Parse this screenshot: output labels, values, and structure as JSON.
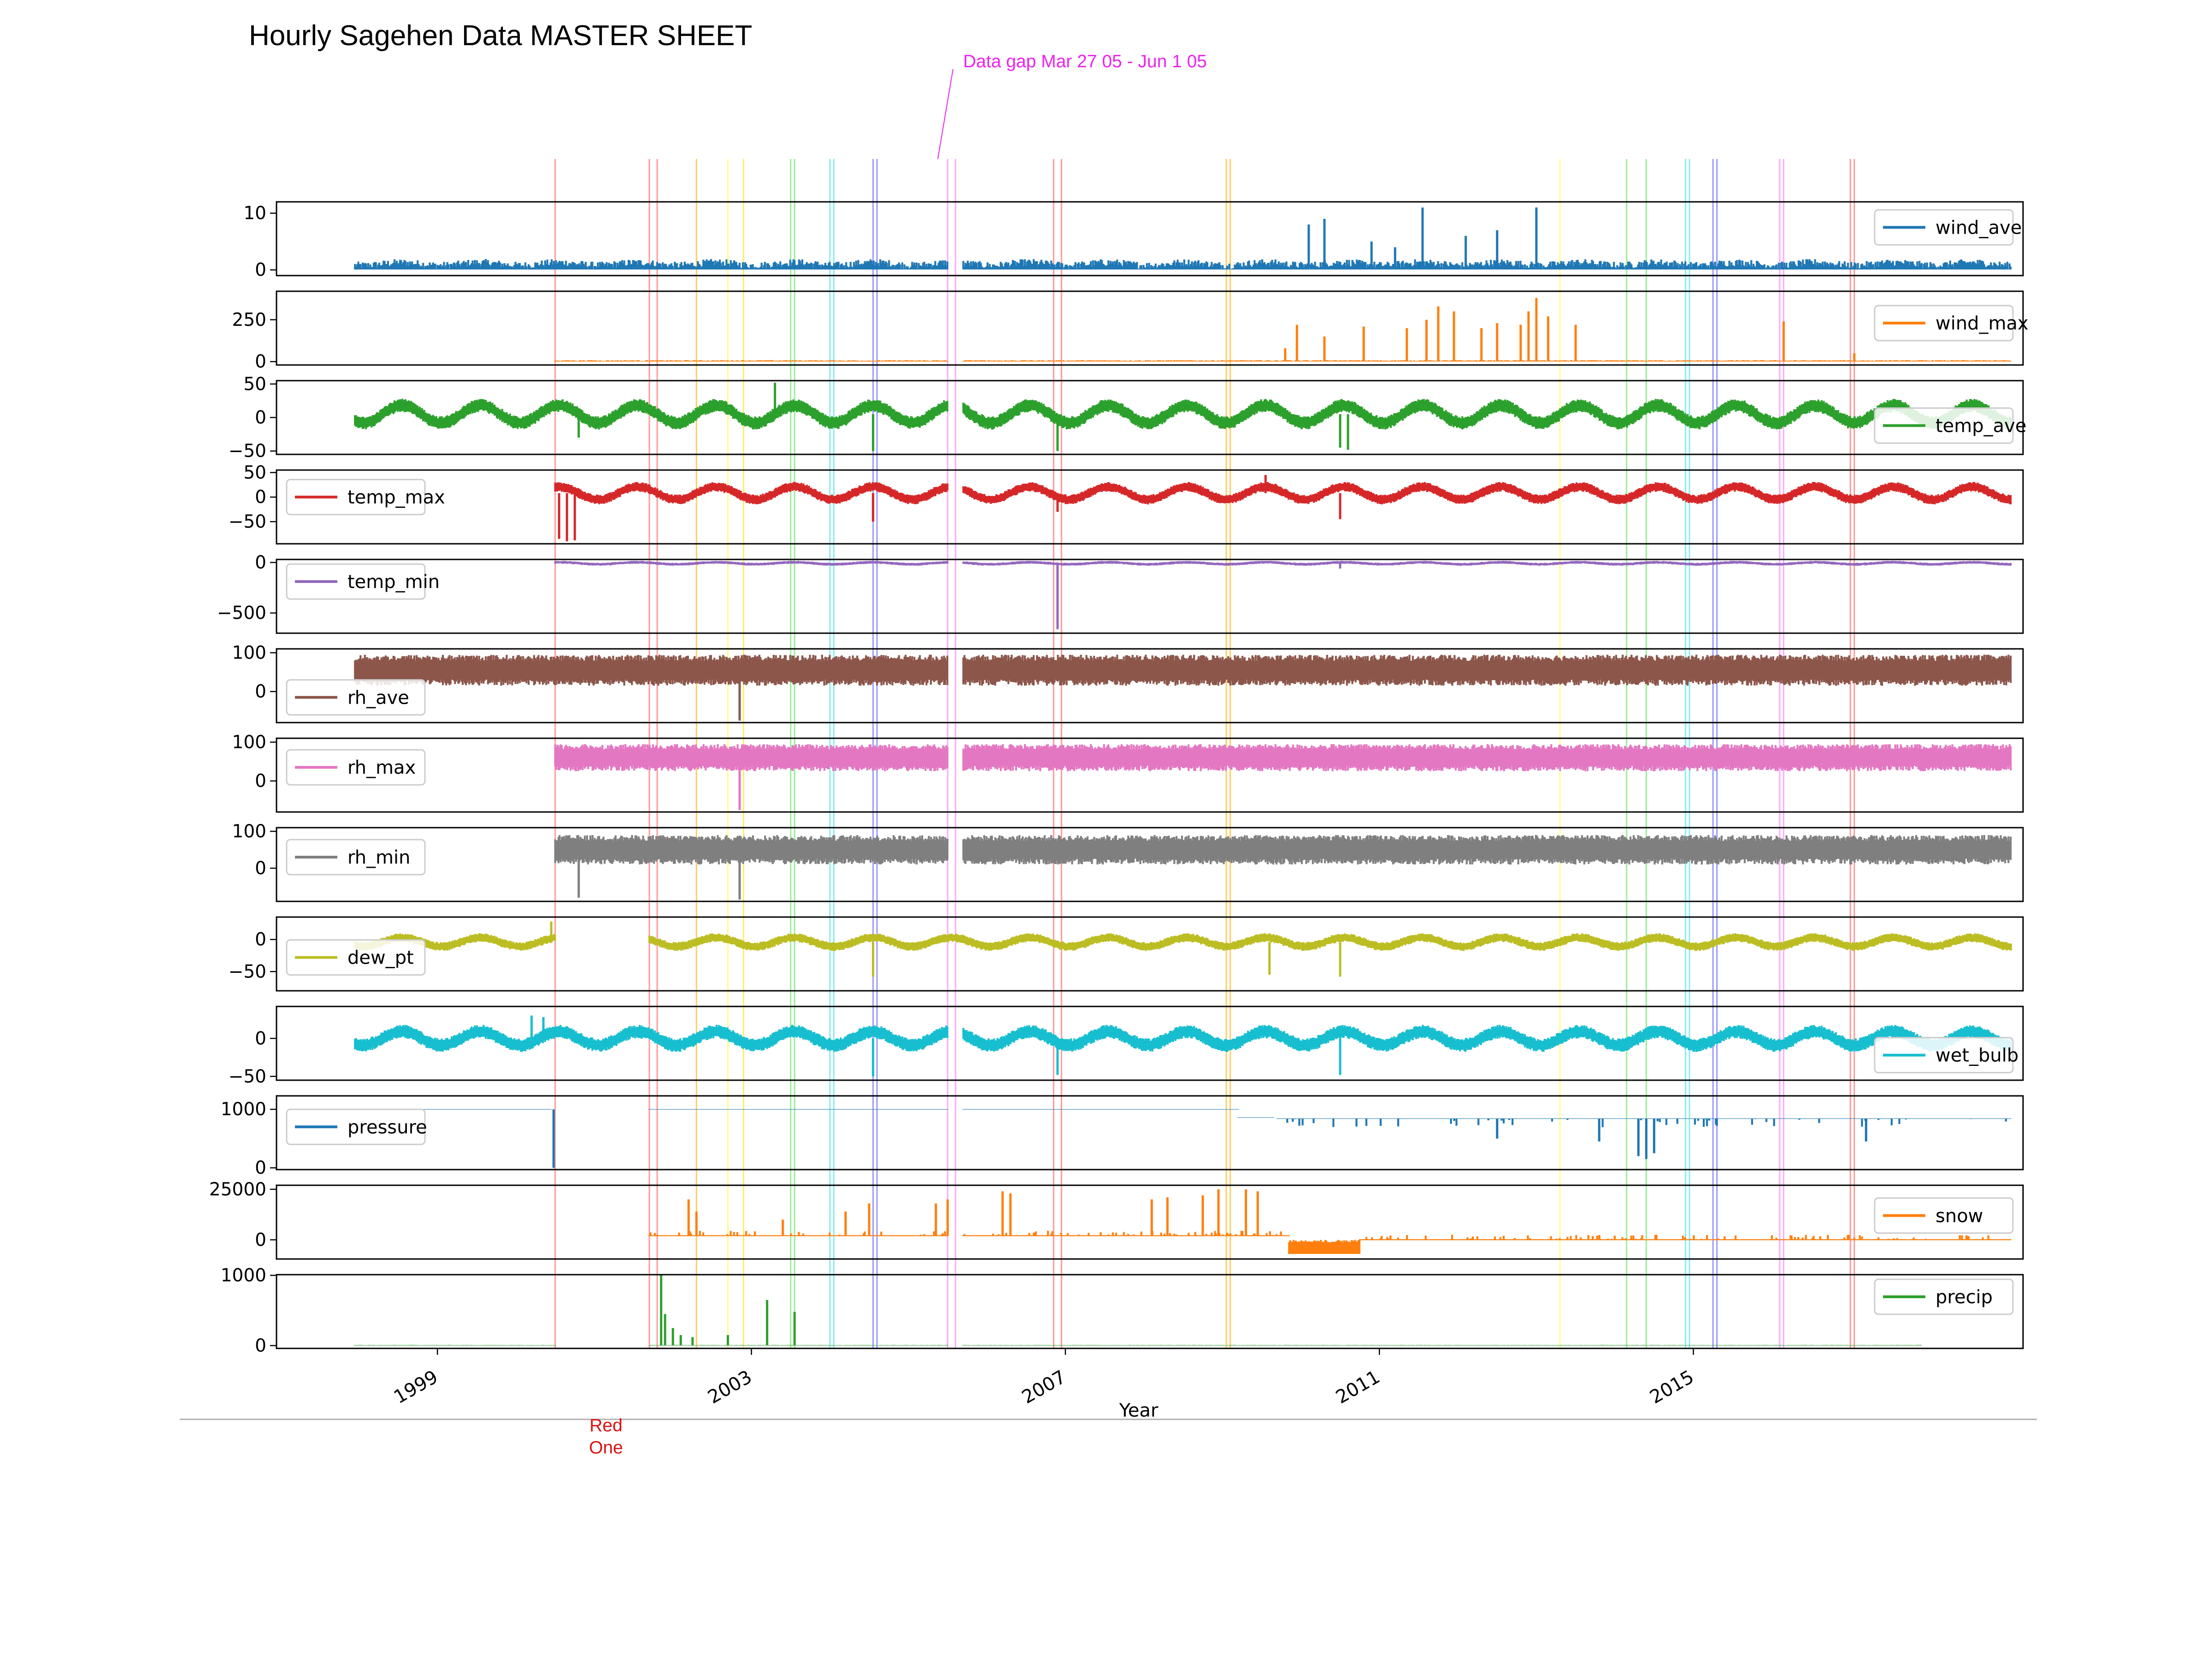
{
  "title": "Hourly Sagehen Data MASTER SHEET",
  "gap_annotation": "Data gap Mar 27 05 - Jun 1 05",
  "bottom_annotation": [
    "Red",
    "One"
  ],
  "colors": {
    "annotation_magenta": "#ee22ee",
    "annotation_red": "#dd1111",
    "axis_line": "#000000",
    "baseline_rule": "#b0b0b0"
  },
  "chart_data": {
    "type": "line",
    "title": "Hourly Sagehen Data MASTER SHEET",
    "xlabel": "Year",
    "x_ticks": [
      "1999",
      "2003",
      "2007",
      "2011",
      "2015"
    ],
    "x_tick_values": [
      1999,
      2003,
      2007,
      2011,
      2015
    ],
    "xlim": [
      1996.95,
      2019.2
    ],
    "grid": false,
    "vertical_markers": [
      {
        "x": 2000.5,
        "color": "#ff9999"
      },
      {
        "x": 2001.7,
        "color": "#ff9999"
      },
      {
        "x": 2001.8,
        "color": "#ff9999"
      },
      {
        "x": 2002.3,
        "color": "#ffcc66"
      },
      {
        "x": 2002.7,
        "color": "#ffff88"
      },
      {
        "x": 2002.9,
        "color": "#ffee66"
      },
      {
        "x": 2003.5,
        "color": "#99ee99"
      },
      {
        "x": 2003.55,
        "color": "#99ee99"
      },
      {
        "x": 2004.0,
        "color": "#88eeee"
      },
      {
        "x": 2004.05,
        "color": "#88eeee"
      },
      {
        "x": 2004.55,
        "color": "#9999ff"
      },
      {
        "x": 2004.6,
        "color": "#9999ff"
      },
      {
        "x": 2005.5,
        "color": "#ffaaff"
      },
      {
        "x": 2005.6,
        "color": "#ffaaff"
      },
      {
        "x": 2006.85,
        "color": "#ff9999"
      },
      {
        "x": 2006.95,
        "color": "#ff9999"
      },
      {
        "x": 2009.05,
        "color": "#ffcc66"
      },
      {
        "x": 2009.1,
        "color": "#ffcc66"
      },
      {
        "x": 2013.3,
        "color": "#ffff88"
      },
      {
        "x": 2014.15,
        "color": "#99ee99"
      },
      {
        "x": 2014.4,
        "color": "#99ee99"
      },
      {
        "x": 2014.9,
        "color": "#88eeee"
      },
      {
        "x": 2014.95,
        "color": "#88eeee"
      },
      {
        "x": 2015.25,
        "color": "#9999ff"
      },
      {
        "x": 2015.3,
        "color": "#9999ff"
      },
      {
        "x": 2016.1,
        "color": "#ffaaff"
      },
      {
        "x": 2016.15,
        "color": "#ffaaff"
      },
      {
        "x": 2017.0,
        "color": "#ff9999"
      },
      {
        "x": 2017.05,
        "color": "#ff9999"
      }
    ],
    "panels": [
      {
        "name": "wind_ave",
        "color": "#1f77b4",
        "ylim": [
          -1,
          12
        ],
        "yticks": [
          {
            "v": 10,
            "label": "10"
          },
          {
            "v": 0,
            "label": "0"
          }
        ],
        "legend": "right",
        "legend_v": 7.5,
        "segments": [
          [
            1997.95,
            2005.5
          ],
          [
            2005.7,
            2019.05
          ]
        ],
        "base": 0.4,
        "amp": 1.3,
        "seasonal": 0.5,
        "mode": "low",
        "spikes": [
          {
            "x": 2010.1,
            "v": 8
          },
          {
            "x": 2010.3,
            "v": 9
          },
          {
            "x": 2010.9,
            "v": 5
          },
          {
            "x": 2011.55,
            "v": 11
          },
          {
            "x": 2012.1,
            "v": 6
          },
          {
            "x": 2012.5,
            "v": 7
          },
          {
            "x": 2013.0,
            "v": 11
          },
          {
            "x": 2011.2,
            "v": 4
          }
        ]
      },
      {
        "name": "wind_max",
        "color": "#ff7f0e",
        "ylim": [
          -20,
          420
        ],
        "yticks": [
          {
            "v": 250,
            "label": "250"
          },
          {
            "v": 0,
            "label": "0"
          }
        ],
        "legend": "right",
        "legend_v": 230,
        "segments": [
          [
            2000.5,
            2005.5
          ],
          [
            2005.7,
            2019.05
          ]
        ],
        "base": 3,
        "amp": 6,
        "seasonal": 0,
        "mode": "low",
        "spikes": [
          {
            "x": 2009.8,
            "v": 80
          },
          {
            "x": 2009.95,
            "v": 220
          },
          {
            "x": 2010.3,
            "v": 150
          },
          {
            "x": 2010.8,
            "v": 210
          },
          {
            "x": 2011.35,
            "v": 200
          },
          {
            "x": 2011.6,
            "v": 250
          },
          {
            "x": 2011.75,
            "v": 330
          },
          {
            "x": 2011.95,
            "v": 300
          },
          {
            "x": 2012.3,
            "v": 200
          },
          {
            "x": 2012.5,
            "v": 230
          },
          {
            "x": 2012.8,
            "v": 220
          },
          {
            "x": 2012.9,
            "v": 300
          },
          {
            "x": 2013.0,
            "v": 380
          },
          {
            "x": 2013.15,
            "v": 270
          },
          {
            "x": 2013.5,
            "v": 220
          },
          {
            "x": 2016.15,
            "v": 240
          },
          {
            "x": 2017.05,
            "v": 50
          }
        ]
      },
      {
        "name": "temp_ave",
        "color": "#2ca02c",
        "ylim": [
          -55,
          55
        ],
        "yticks": [
          {
            "v": 50,
            "label": "50"
          },
          {
            "v": 0,
            "label": "0"
          },
          {
            "v": -50,
            "label": "−50"
          }
        ],
        "legend": "right",
        "legend_v": -12,
        "segments": [
          [
            1997.95,
            2005.5
          ],
          [
            2005.7,
            2019.05
          ]
        ],
        "base": 5,
        "amp": 10,
        "seasonal": 13,
        "mode": "band",
        "spikes": [
          {
            "x": 2000.8,
            "v": -30
          },
          {
            "x": 2003.3,
            "v": 52
          },
          {
            "x": 2004.55,
            "v": -50
          },
          {
            "x": 2006.9,
            "v": -50
          },
          {
            "x": 2010.5,
            "v": -45
          },
          {
            "x": 2010.6,
            "v": -48
          }
        ]
      },
      {
        "name": "temp_max",
        "color": "#d62728",
        "ylim": [
          -95,
          55
        ],
        "yticks": [
          {
            "v": 50,
            "label": "50"
          },
          {
            "v": 0,
            "label": "0"
          },
          {
            "v": -50,
            "label": "−50"
          }
        ],
        "legend": "left",
        "legend_v": 0,
        "segments": [
          [
            2000.5,
            2005.5
          ],
          [
            2005.7,
            2019.05
          ]
        ],
        "base": 8,
        "amp": 10,
        "seasonal": 13,
        "mode": "band",
        "spikes": [
          {
            "x": 2000.55,
            "v": -85
          },
          {
            "x": 2000.65,
            "v": -90
          },
          {
            "x": 2000.75,
            "v": -88
          },
          {
            "x": 2004.55,
            "v": -50
          },
          {
            "x": 2006.9,
            "v": -30
          },
          {
            "x": 2009.55,
            "v": 45
          },
          {
            "x": 2010.5,
            "v": -45
          }
        ]
      },
      {
        "name": "temp_min",
        "color": "#9467bd",
        "ylim": [
          -700,
          30
        ],
        "yticks": [
          {
            "v": 0,
            "label": "0"
          },
          {
            "v": -500,
            "label": "−500"
          }
        ],
        "legend": "left",
        "legend_v": -80,
        "segments": [
          [
            2000.5,
            2005.5
          ],
          [
            2005.7,
            2019.05
          ]
        ],
        "base": -8,
        "amp": 15,
        "seasonal": 10,
        "mode": "band",
        "spikes": [
          {
            "x": 2006.9,
            "v": -660
          },
          {
            "x": 2010.5,
            "v": -60
          }
        ]
      },
      {
        "name": "rh_ave",
        "color": "#8c564b",
        "ylim": [
          -80,
          110
        ],
        "yticks": [
          {
            "v": 100,
            "label": "100"
          },
          {
            "v": 0,
            "label": "0"
          }
        ],
        "legend": "left",
        "legend_v": -15,
        "segments": [
          [
            1997.95,
            2005.5
          ],
          [
            2005.7,
            2019.05
          ]
        ],
        "base": 55,
        "amp": 40,
        "seasonal": 0,
        "mode": "band",
        "spikes": [
          {
            "x": 2002.85,
            "v": -75
          }
        ]
      },
      {
        "name": "rh_max",
        "color": "#e377c2",
        "ylim": [
          -80,
          110
        ],
        "yticks": [
          {
            "v": 100,
            "label": "100"
          },
          {
            "v": 0,
            "label": "0"
          }
        ],
        "legend": "left",
        "legend_v": 35,
        "segments": [
          [
            2000.5,
            2005.5
          ],
          [
            2005.7,
            2019.05
          ]
        ],
        "base": 60,
        "amp": 35,
        "seasonal": 0,
        "mode": "band",
        "spikes": [
          {
            "x": 2002.85,
            "v": -75
          }
        ]
      },
      {
        "name": "rh_min",
        "color": "#7f7f7f",
        "ylim": [
          -90,
          110
        ],
        "yticks": [
          {
            "v": 100,
            "label": "100"
          },
          {
            "v": 0,
            "label": "0"
          }
        ],
        "legend": "left",
        "legend_v": 30,
        "segments": [
          [
            2000.5,
            2005.5
          ],
          [
            2005.7,
            2019.05
          ]
        ],
        "base": 50,
        "amp": 40,
        "seasonal": 0,
        "mode": "band",
        "spikes": [
          {
            "x": 2000.8,
            "v": -80
          },
          {
            "x": 2002.85,
            "v": -85
          }
        ]
      },
      {
        "name": "dew_pt",
        "color": "#bcbd22",
        "ylim": [
          -80,
          35
        ],
        "yticks": [
          {
            "v": 0,
            "label": "0"
          },
          {
            "v": -50,
            "label": "−50"
          }
        ],
        "legend": "left",
        "legend_v": -28,
        "segments": [
          [
            1997.95,
            2000.5
          ],
          [
            2001.7,
            2019.05
          ]
        ],
        "base": -4,
        "amp": 7,
        "seasonal": 7,
        "mode": "band",
        "spikes": [
          {
            "x": 2000.45,
            "v": 28
          },
          {
            "x": 2004.55,
            "v": -58
          },
          {
            "x": 2009.6,
            "v": -55
          },
          {
            "x": 2010.5,
            "v": -58
          }
        ]
      },
      {
        "name": "wet_bulb",
        "color": "#17becf",
        "ylim": [
          -55,
          42
        ],
        "yticks": [
          {
            "v": 0,
            "label": "0"
          },
          {
            "v": -50,
            "label": "−50"
          }
        ],
        "legend": "right",
        "legend_v": -22,
        "segments": [
          [
            1997.95,
            2005.5
          ],
          [
            2005.7,
            2019.05
          ]
        ],
        "base": 0,
        "amp": 9,
        "seasonal": 9,
        "mode": "band",
        "spikes": [
          {
            "x": 2000.2,
            "v": 30
          },
          {
            "x": 2000.35,
            "v": 28
          },
          {
            "x": 2004.55,
            "v": -50
          },
          {
            "x": 2006.9,
            "v": -48
          },
          {
            "x": 2010.5,
            "v": -48
          }
        ]
      },
      {
        "name": "pressure",
        "color": "#1f77b4",
        "ylim": [
          -30,
          1230
        ],
        "yticks": [
          {
            "v": 1000,
            "label": "1000"
          },
          {
            "v": 0,
            "label": "0"
          }
        ],
        "legend": "left",
        "legend_v": 700,
        "segments": [
          [
            1997.95,
            2000.45
          ],
          [
            2001.7,
            2005.5
          ],
          [
            2005.7,
            2009.2
          ],
          [
            2009.2,
            2009.65
          ],
          [
            2009.7,
            2019.05
          ]
        ],
        "base": 1000,
        "amp": 8,
        "seasonal": 0,
        "mode": "pressure",
        "spikes": [
          {
            "x": 2000.48,
            "v": 0
          },
          {
            "x": 2014.3,
            "v": 200
          },
          {
            "x": 2014.4,
            "v": 150
          },
          {
            "x": 2014.5,
            "v": 250
          },
          {
            "x": 2013.8,
            "v": 450
          },
          {
            "x": 2012.5,
            "v": 500
          },
          {
            "x": 2017.2,
            "v": 450
          }
        ]
      },
      {
        "name": "snow",
        "color": "#ff7f0e",
        "ylim": [
          -9500,
          27000
        ],
        "yticks": [
          {
            "v": 25000,
            "label": "25000"
          },
          {
            "v": 0,
            "label": "0"
          }
        ],
        "legend": "right",
        "legend_v": 12000,
        "segments": [
          [
            2001.7,
            2005.5
          ],
          [
            2005.7,
            2009.85
          ],
          [
            2009.85,
            2010.75
          ],
          [
            2010.75,
            2019.05
          ]
        ],
        "base": 2000,
        "amp": 1200,
        "seasonal": 0,
        "mode": "snow",
        "spikes": [
          {
            "x": 2002.2,
            "v": 20000
          },
          {
            "x": 2002.3,
            "v": 14000
          },
          {
            "x": 2003.4,
            "v": 10000
          },
          {
            "x": 2004.2,
            "v": 14000
          },
          {
            "x": 2004.5,
            "v": 18000
          },
          {
            "x": 2005.35,
            "v": 18000
          },
          {
            "x": 2005.5,
            "v": 20000
          },
          {
            "x": 2006.2,
            "v": 24000
          },
          {
            "x": 2006.3,
            "v": 23000
          },
          {
            "x": 2008.1,
            "v": 20000
          },
          {
            "x": 2008.3,
            "v": 21000
          },
          {
            "x": 2008.75,
            "v": 22000
          },
          {
            "x": 2008.95,
            "v": 25000
          },
          {
            "x": 2009.3,
            "v": 25000
          },
          {
            "x": 2009.45,
            "v": 24000
          }
        ]
      },
      {
        "name": "precip",
        "color": "#2ca02c",
        "ylim": [
          -40,
          1010
        ],
        "yticks": [
          {
            "v": 1000,
            "label": "1000"
          },
          {
            "v": 0,
            "label": "0"
          }
        ],
        "legend": "right",
        "legend_v": 720,
        "segments": [
          [
            1997.95,
            2000.5
          ],
          [
            2001.7,
            2005.5
          ],
          [
            2005.7,
            2017.9
          ]
        ],
        "base": 5,
        "amp": 4,
        "seasonal": 0,
        "mode": "low",
        "spikes": [
          {
            "x": 2001.85,
            "v": 1000
          },
          {
            "x": 2001.9,
            "v": 450
          },
          {
            "x": 2002.0,
            "v": 250
          },
          {
            "x": 2002.1,
            "v": 150
          },
          {
            "x": 2002.25,
            "v": 120
          },
          {
            "x": 2002.7,
            "v": 150
          },
          {
            "x": 2003.2,
            "v": 650
          },
          {
            "x": 2003.55,
            "v": 480
          }
        ]
      }
    ]
  }
}
